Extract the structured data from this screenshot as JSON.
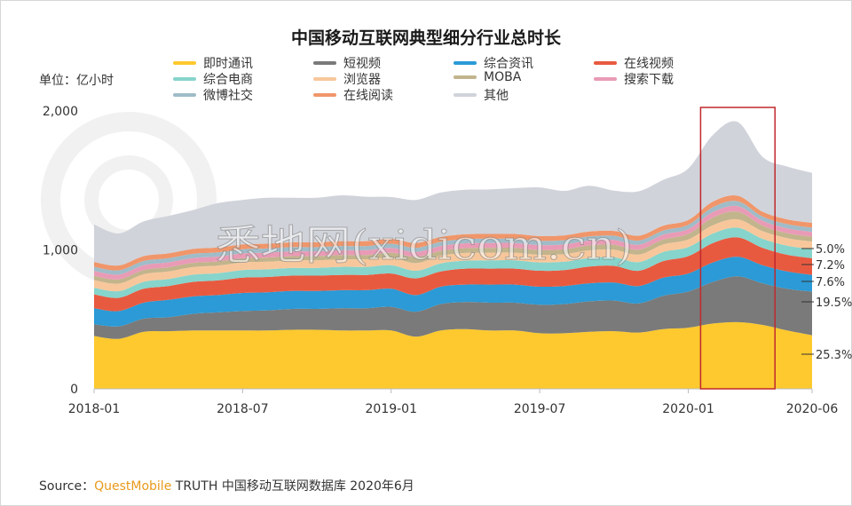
{
  "title": "中国移动互联网典型细分行业总时长",
  "unit_label": "单位：亿小时",
  "watermark": "悉地网(xidicom.cn)",
  "source": {
    "prefix": "Source：",
    "brand": "QuestMobile",
    "rest": " TRUTH 中国移动互联网数据库 2020年6月"
  },
  "legend": [
    {
      "name": "即时通讯",
      "color": "#fec92e"
    },
    {
      "name": "短视频",
      "color": "#7a7a7a"
    },
    {
      "name": "综合资讯",
      "color": "#2b9ad6"
    },
    {
      "name": "在线视频",
      "color": "#e85a40"
    },
    {
      "name": "综合电商",
      "color": "#86d4cc"
    },
    {
      "name": "浏览器",
      "color": "#f7c79b"
    },
    {
      "name": "MOBA",
      "color": "#c2b48c"
    },
    {
      "name": "搜索下载",
      "color": "#e99bb6"
    },
    {
      "name": "微博社交",
      "color": "#9fbcc8"
    },
    {
      "name": "在线阅读",
      "color": "#f0966a"
    },
    {
      "name": "其他",
      "color": "#d0d3da"
    }
  ],
  "chart_data": {
    "type": "area",
    "stacked": true,
    "x_ticks": [
      "2018-01",
      "2018-07",
      "2019-01",
      "2019-07",
      "2020-01",
      "2020-06"
    ],
    "yticks": [
      "0",
      "1,000",
      "2,000"
    ],
    "ylim": [
      0,
      2000
    ],
    "x": [
      "2018-01",
      "2018-02",
      "2018-03",
      "2018-04",
      "2018-05",
      "2018-06",
      "2018-07",
      "2018-08",
      "2018-09",
      "2018-10",
      "2018-11",
      "2018-12",
      "2019-01",
      "2019-02",
      "2019-03",
      "2019-04",
      "2019-05",
      "2019-06",
      "2019-07",
      "2019-08",
      "2019-09",
      "2019-10",
      "2019-11",
      "2019-12",
      "2020-01",
      "2020-02",
      "2020-03",
      "2020-04",
      "2020-05",
      "2020-06"
    ],
    "series": [
      {
        "name": "即时通讯",
        "values": [
          380,
          360,
          410,
          415,
          420,
          420,
          420,
          420,
          425,
          425,
          420,
          420,
          420,
          375,
          420,
          430,
          420,
          420,
          400,
          400,
          410,
          415,
          405,
          430,
          440,
          470,
          480,
          460,
          420,
          385
        ]
      },
      {
        "name": "短视频",
        "values": [
          85,
          90,
          95,
          100,
          120,
          130,
          140,
          145,
          150,
          150,
          160,
          160,
          170,
          180,
          190,
          195,
          200,
          200,
          205,
          210,
          220,
          220,
          210,
          240,
          260,
          300,
          330,
          300,
          300,
          315
        ]
      },
      {
        "name": "综合资讯",
        "values": [
          115,
          110,
          115,
          125,
          125,
          125,
          130,
          130,
          130,
          130,
          130,
          130,
          130,
          120,
          125,
          125,
          130,
          130,
          130,
          130,
          130,
          130,
          125,
          130,
          130,
          140,
          140,
          130,
          125,
          120
        ]
      },
      {
        "name": "在线视频",
        "values": [
          100,
          95,
          100,
          100,
          105,
          105,
          110,
          110,
          110,
          110,
          110,
          110,
          110,
          120,
          110,
          115,
          115,
          115,
          115,
          115,
          120,
          120,
          110,
          120,
          125,
          140,
          140,
          125,
          120,
          120
        ]
      },
      {
        "name": "综合电商",
        "values": [
          48,
          48,
          50,
          50,
          52,
          52,
          55,
          55,
          55,
          55,
          58,
          58,
          60,
          55,
          58,
          58,
          60,
          60,
          60,
          60,
          62,
          62,
          62,
          65,
          65,
          68,
          70,
          65,
          65,
          65
        ]
      },
      {
        "name": "浏览器",
        "values": [
          55,
          55,
          55,
          55,
          55,
          55,
          55,
          55,
          55,
          55,
          55,
          55,
          55,
          55,
          55,
          55,
          55,
          55,
          55,
          55,
          55,
          55,
          55,
          55,
          55,
          60,
          60,
          55,
          55,
          55
        ]
      },
      {
        "name": "MOBA",
        "values": [
          30,
          30,
          30,
          30,
          30,
          30,
          30,
          30,
          30,
          30,
          30,
          30,
          35,
          45,
          35,
          35,
          35,
          35,
          35,
          35,
          35,
          35,
          35,
          35,
          40,
          55,
          55,
          40,
          35,
          35
        ]
      },
      {
        "name": "搜索下载",
        "values": [
          35,
          35,
          35,
          35,
          35,
          35,
          35,
          35,
          35,
          35,
          35,
          35,
          35,
          35,
          35,
          35,
          35,
          35,
          35,
          35,
          35,
          35,
          35,
          35,
          35,
          40,
          40,
          35,
          35,
          35
        ]
      },
      {
        "name": "微博社交",
        "values": [
          30,
          30,
          30,
          30,
          30,
          30,
          30,
          30,
          30,
          30,
          30,
          30,
          30,
          30,
          30,
          30,
          30,
          30,
          30,
          30,
          30,
          30,
          30,
          30,
          30,
          35,
          35,
          30,
          30,
          30
        ]
      },
      {
        "name": "在线阅读",
        "values": [
          35,
          35,
          35,
          35,
          35,
          35,
          35,
          35,
          35,
          35,
          35,
          35,
          35,
          35,
          35,
          35,
          35,
          35,
          35,
          35,
          35,
          35,
          35,
          35,
          35,
          40,
          40,
          35,
          35,
          35
        ]
      },
      {
        "name": "其他",
        "values": [
          270,
          230,
          250,
          270,
          280,
          320,
          320,
          330,
          320,
          320,
          330,
          320,
          300,
          310,
          320,
          320,
          320,
          330,
          350,
          320,
          330,
          290,
          320,
          330,
          370,
          480,
          530,
          395,
          380,
          360
        ]
      }
    ],
    "annotations": [
      "5.0%",
      "7.2%",
      "7.6%",
      "19.5%",
      "25.3%"
    ],
    "highlight": {
      "from": "2020-02",
      "to": "2020-04"
    }
  }
}
